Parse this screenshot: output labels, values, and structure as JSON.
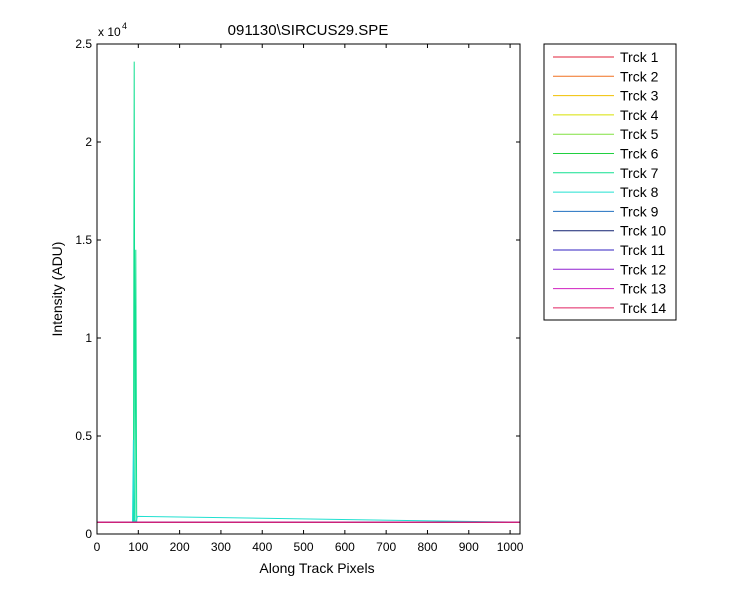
{
  "chart_data": {
    "type": "line",
    "title": "091130\\SIRCUS29.SPE",
    "xlabel": "Along Track Pixels",
    "ylabel": "Intensity (ADU)",
    "xlim": [
      0,
      1024
    ],
    "ylim": [
      0,
      25000
    ],
    "y_exponent_label": "x 10",
    "y_exponent": "4",
    "xticks": [
      0,
      100,
      200,
      300,
      400,
      500,
      600,
      700,
      800,
      900,
      1000
    ],
    "yticks": [
      0,
      5000,
      10000,
      15000,
      20000,
      25000
    ],
    "ytick_labels": [
      "0",
      "0.5",
      "1",
      "1.5",
      "2",
      "2.5"
    ],
    "grid": false,
    "legend_position": "outside-right",
    "series": [
      {
        "name": "Trck 1",
        "color": "#e0203a",
        "x": [
          0,
          1024
        ],
        "y": [
          600,
          600
        ]
      },
      {
        "name": "Trck 2",
        "color": "#f07020",
        "x": [
          0,
          1024
        ],
        "y": [
          600,
          600
        ]
      },
      {
        "name": "Trck 3",
        "color": "#f0c000",
        "x": [
          0,
          1024
        ],
        "y": [
          600,
          600
        ]
      },
      {
        "name": "Trck 4",
        "color": "#d8e000",
        "x": [
          0,
          1024
        ],
        "y": [
          600,
          600
        ]
      },
      {
        "name": "Trck 5",
        "color": "#80e040",
        "x": [
          0,
          1024
        ],
        "y": [
          600,
          600
        ]
      },
      {
        "name": "Trck 6",
        "color": "#20d040",
        "x": [
          0,
          1024
        ],
        "y": [
          600,
          600
        ]
      },
      {
        "name": "Trck 7",
        "color": "#10e090",
        "x": [
          0,
          88,
          90,
          92,
          94,
          96,
          1024
        ],
        "y": [
          600,
          600,
          24100,
          600,
          14500,
          600,
          600
        ]
      },
      {
        "name": "Trck 8",
        "color": "#20e0d0",
        "x": [
          0,
          86,
          88,
          90,
          94,
          98,
          1024
        ],
        "y": [
          600,
          600,
          4800,
          600,
          600,
          900,
          600
        ]
      },
      {
        "name": "Trck 9",
        "color": "#2070c0",
        "x": [
          0,
          1024
        ],
        "y": [
          600,
          600
        ]
      },
      {
        "name": "Trck 10",
        "color": "#102070",
        "x": [
          0,
          1024
        ],
        "y": [
          600,
          600
        ]
      },
      {
        "name": "Trck 11",
        "color": "#3020c0",
        "x": [
          0,
          1024
        ],
        "y": [
          600,
          600
        ]
      },
      {
        "name": "Trck 12",
        "color": "#9020d0",
        "x": [
          0,
          1024
        ],
        "y": [
          600,
          600
        ]
      },
      {
        "name": "Trck 13",
        "color": "#d020c0",
        "x": [
          0,
          1024
        ],
        "y": [
          600,
          600
        ]
      },
      {
        "name": "Trck 14",
        "color": "#e02060",
        "x": [
          0,
          1024
        ],
        "y": [
          600,
          600
        ]
      }
    ]
  }
}
